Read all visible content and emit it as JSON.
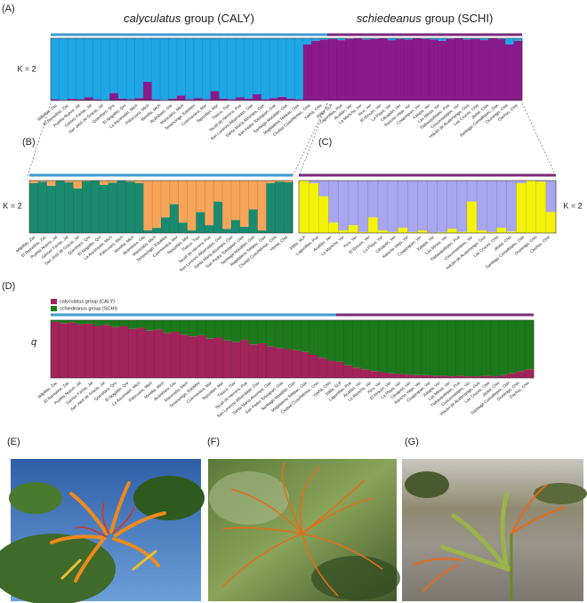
{
  "groups": [
    {
      "name": "calyculatus",
      "suffix": "group (CALY)",
      "color": "#3d9bd1"
    },
    {
      "name": "schiedeanus",
      "suffix": "group (SCHI)",
      "color": "#7b2a7b"
    }
  ],
  "sites": {
    "caly": [
      "Milpillas, Zac",
      "El Remolino, Zac",
      "Puebla Nuevo, Jal",
      "Gómez Farías, Jal",
      "San José de Gracia, Jal",
      "Querétaro, Qro",
      "El Nogalito, Qro",
      "La Ascensión, Mich",
      "Pátzcuaro, Mich",
      "Morelia, Mich",
      "Acámbaro, Gto",
      "Maravatío, Mich",
      "Tenancingo, EdoMex",
      "Cuernavaca, Mor",
      "Tepoztlán, Mor",
      "Tlaxco, Tlax",
      "Tecali de Herrera, Pue",
      "San Lorenzo Albarradas, Oax",
      "Santa María Atzompa, Oax",
      "San Pedro Totolapan, Oax",
      "Santiago Matatlán, Oax",
      "Magdalena Teitipac, Oax",
      "Ciudad Cuauhtémoc, Chis",
      "Yaxhá, Chis"
    ],
    "schi": [
      "Xilitla, SLP",
      "Lagunillas, Pue",
      "Acatlán, Ver",
      "La Mancha, Ver",
      "Xico, Ver",
      "El Rincón, Ver",
      "La Playa, Ver",
      "Cituapán, Ver",
      "Rancho Viejo, Ver",
      "Coapexpan, Ver",
      "Xalapa, Ver",
      "Las Minas, Ver",
      "Tlatlauquitepec, Pue",
      "Coscomatepec, Ver",
      "Volcán de Acatenango, Gua",
      "Las Cruces, Chis",
      "Jitotol, Chis",
      "Santiago Comaltepec, Oax",
      "Ocosingo, Chis",
      "Oxchuc, Chis"
    ]
  },
  "chart_data": [
    {
      "type": "bar",
      "panel": "(A)",
      "label": "K = 2",
      "ylim": [
        0,
        1
      ],
      "series": [
        {
          "color": "#8a1a8c",
          "values": [
            0.02,
            0.01,
            0.03,
            0.02,
            0.05,
            0.02,
            0.01,
            0.12,
            0.03,
            0.02,
            0.04,
            0.3,
            0.02,
            0.01,
            0.03,
            0.08,
            0.02,
            0.04,
            0.02,
            0.15,
            0.03,
            0.02,
            0.05,
            0.03,
            0.1,
            0.02,
            0.04,
            0.06,
            0.03,
            0.02,
            0.9,
            0.96,
            0.98,
            0.99,
            0.97,
            0.99,
            1,
            0.98,
            0.99,
            1,
            0.97,
            0.99,
            0.98,
            1,
            0.99,
            0.98,
            0.96,
            0.99,
            1,
            0.98,
            0.99,
            0.97,
            1,
            0.99,
            0.9,
            0.96
          ]
        },
        {
          "color": "#1ea7e6",
          "values": [
            0.98,
            0.99,
            0.97,
            0.98,
            0.95,
            0.98,
            0.99,
            0.88,
            0.97,
            0.98,
            0.96,
            0.7,
            0.98,
            0.99,
            0.97,
            0.92,
            0.98,
            0.96,
            0.98,
            0.85,
            0.97,
            0.98,
            0.95,
            0.97,
            0.9,
            0.98,
            0.96,
            0.94,
            0.97,
            0.98,
            0.1,
            0.04,
            0.02,
            0.01,
            0.03,
            0.01,
            0,
            0.02,
            0.01,
            0,
            0.03,
            0.01,
            0.02,
            0,
            0.01,
            0.02,
            0.04,
            0.01,
            0,
            0.02,
            0.01,
            0.03,
            0,
            0.01,
            0.1,
            0.04
          ]
        }
      ]
    },
    {
      "type": "bar",
      "panel": "(B)",
      "label": "K = 2",
      "ylim": [
        0,
        1
      ],
      "series": [
        {
          "color": "#1a8a6e",
          "values": [
            0.95,
            0.98,
            0.9,
            1,
            0.97,
            0.85,
            0.99,
            1,
            0.92,
            0.96,
            1,
            0.98,
            0.95,
            0.05,
            0.1,
            0.3,
            0.55,
            0.2,
            0.05,
            0.4,
            0.15,
            0.6,
            0.08,
            0.25,
            0.12,
            0.45,
            0.05,
            0.95,
            0.98,
            0.97
          ]
        },
        {
          "color": "#f7a55a",
          "values": [
            0.05,
            0.02,
            0.1,
            0,
            0.03,
            0.15,
            0.01,
            0,
            0.08,
            0.04,
            0,
            0.02,
            0.05,
            0.95,
            0.9,
            0.7,
            0.45,
            0.8,
            0.95,
            0.6,
            0.85,
            0.4,
            0.92,
            0.75,
            0.88,
            0.55,
            0.95,
            0.05,
            0.02,
            0.03
          ]
        }
      ]
    },
    {
      "type": "bar",
      "panel": "(C)",
      "label": "K = 2",
      "ylim": [
        0,
        1
      ],
      "series": [
        {
          "color": "#f2f20a",
          "values": [
            1,
            0.95,
            0.7,
            0.2,
            0.05,
            0.15,
            0.02,
            0.3,
            0.05,
            0.02,
            0.1,
            0.02,
            0.05,
            0.01,
            0.02,
            0.08,
            0.02,
            0.6,
            0.05,
            0.02,
            0.1,
            0.03,
            0.95,
            1,
            0.98,
            0.4
          ]
        },
        {
          "color": "#a9a6f0",
          "values": [
            0,
            0.05,
            0.3,
            0.8,
            0.95,
            0.85,
            0.98,
            0.7,
            0.95,
            0.98,
            0.9,
            0.98,
            0.95,
            0.99,
            0.98,
            0.92,
            0.98,
            0.4,
            0.95,
            0.98,
            0.9,
            0.97,
            0.05,
            0,
            0.02,
            0.6
          ]
        }
      ]
    },
    {
      "type": "bar",
      "panel": "(D)",
      "label": "q",
      "ylim": [
        0,
        1
      ],
      "series": [
        {
          "name": "calyculatus group (CALY)",
          "color": "#a3245a",
          "values": [
            0.97,
            0.95,
            0.96,
            0.93,
            0.94,
            0.9,
            0.92,
            0.88,
            0.9,
            0.85,
            0.87,
            0.82,
            0.84,
            0.78,
            0.8,
            0.75,
            0.72,
            0.74,
            0.68,
            0.7,
            0.65,
            0.62,
            0.66,
            0.58,
            0.6,
            0.55,
            0.52,
            0.5,
            0.48,
            0.45,
            0.4,
            0.35,
            0.3,
            0.28,
            0.22,
            0.18,
            0.15,
            0.12,
            0.1,
            0.08,
            0.07,
            0.06,
            0.05,
            0.05,
            0.04,
            0.04,
            0.03,
            0.04,
            0.03,
            0.03,
            0.04,
            0.03,
            0.05,
            0.08,
            0.12,
            0.15
          ]
        },
        {
          "name": "schiedeanus group (SCHI)",
          "color": "#1c7a1c",
          "values": [
            0.03,
            0.05,
            0.04,
            0.07,
            0.06,
            0.1,
            0.08,
            0.12,
            0.1,
            0.15,
            0.13,
            0.18,
            0.16,
            0.22,
            0.2,
            0.25,
            0.28,
            0.26,
            0.32,
            0.3,
            0.35,
            0.38,
            0.34,
            0.42,
            0.4,
            0.45,
            0.48,
            0.5,
            0.52,
            0.55,
            0.6,
            0.65,
            0.7,
            0.72,
            0.78,
            0.82,
            0.85,
            0.88,
            0.9,
            0.92,
            0.93,
            0.94,
            0.95,
            0.95,
            0.96,
            0.96,
            0.97,
            0.96,
            0.97,
            0.97,
            0.96,
            0.97,
            0.95,
            0.92,
            0.88,
            0.85
          ]
        }
      ]
    }
  ],
  "photos": [
    "(E)",
    "(F)",
    "(G)"
  ]
}
